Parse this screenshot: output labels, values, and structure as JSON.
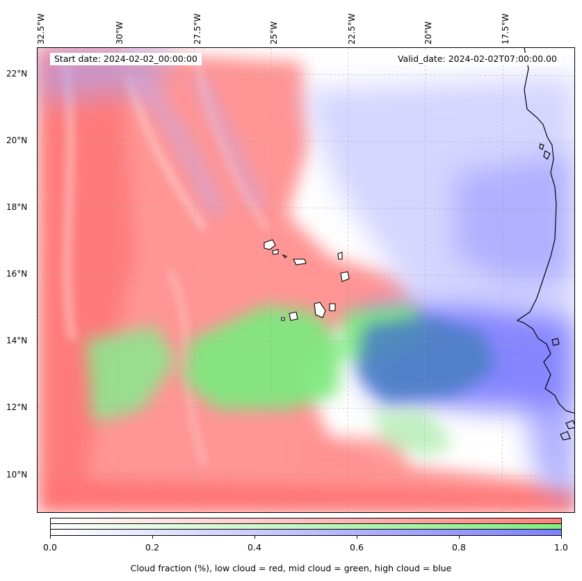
{
  "map": {
    "start_date": "Start date: 2024-02-02_00:00:00",
    "valid_date": "Valid_date: 2024-02-02T07:00:00.00",
    "lon_labels": [
      "32.5°W",
      "30°W",
      "27.5°W",
      "25°W",
      "22.5°W",
      "20°W",
      "17.5°W"
    ],
    "lat_labels": [
      "22°N",
      "20°N",
      "18°N",
      "16°N",
      "14°N",
      "12°N",
      "10°N"
    ],
    "layers": [
      "low cloud",
      "mid cloud",
      "high cloud"
    ],
    "colors": {
      "low": "#ff7f7f",
      "mid": "#7fef7f",
      "high": "#7f7fff",
      "overlap_mid_high": "#4080c0",
      "coast": "#000000"
    }
  },
  "colorbar": {
    "ticks": [
      "0.0",
      "0.2",
      "0.4",
      "0.6",
      "0.8",
      "1.0"
    ],
    "caption": "Cloud fraction (%), low cloud = red, mid cloud = green, high cloud = blue",
    "range": [
      0.0,
      1.0
    ]
  }
}
